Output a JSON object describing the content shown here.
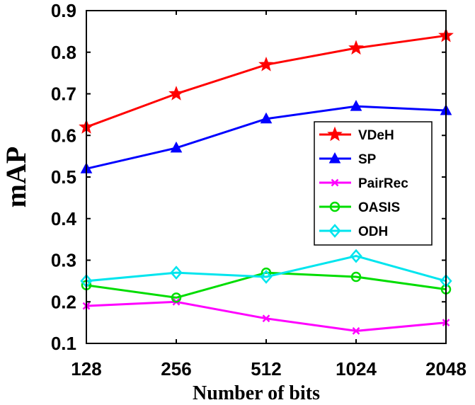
{
  "chart_data": {
    "type": "line",
    "title": "",
    "xlabel": "Number of bits",
    "ylabel": "mAP",
    "categories": [
      "128",
      "256",
      "512",
      "1024",
      "2048"
    ],
    "yticks": [
      "0.1",
      "0.2",
      "0.3",
      "0.4",
      "0.5",
      "0.6",
      "0.7",
      "0.8",
      "0.9"
    ],
    "ylim": [
      0.1,
      0.9
    ],
    "grid": false,
    "legend_position": "right",
    "series": [
      {
        "name": "VDeH",
        "color": "#ff0000",
        "marker": "star",
        "values": [
          0.62,
          0.7,
          0.77,
          0.81,
          0.84
        ]
      },
      {
        "name": "SP",
        "color": "#0000ff",
        "marker": "triangle",
        "values": [
          0.52,
          0.57,
          0.64,
          0.67,
          0.66
        ]
      },
      {
        "name": "PairRec",
        "color": "#ff00ff",
        "marker": "x",
        "values": [
          0.19,
          0.2,
          0.16,
          0.13,
          0.15
        ]
      },
      {
        "name": "OASIS",
        "color": "#00dd00",
        "marker": "circle",
        "values": [
          0.24,
          0.21,
          0.27,
          0.26,
          0.23
        ]
      },
      {
        "name": "ODH",
        "color": "#00e5ee",
        "marker": "diamond",
        "values": [
          0.25,
          0.27,
          0.26,
          0.31,
          0.25
        ]
      }
    ]
  }
}
